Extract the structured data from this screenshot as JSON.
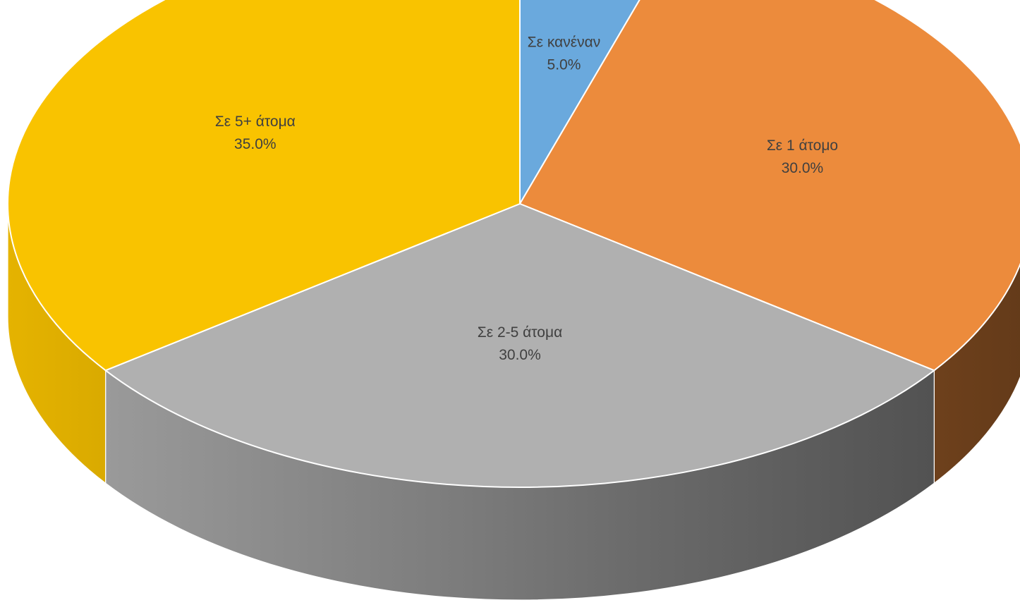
{
  "chart_data": {
    "type": "pie",
    "style": "3d",
    "title": "",
    "categories": [
      "Σε κανέναν",
      "Σε 1 άτομο",
      "Σε 2-5 άτομα",
      "Σε 5+ άτομα"
    ],
    "values": [
      5.0,
      30.0,
      30.0,
      35.0
    ],
    "value_labels": [
      "5.0%",
      "30.0%",
      "30.0%",
      "35.0%"
    ],
    "colors": [
      "#6AA9DD",
      "#EC8B3C",
      "#B0B0B0",
      "#F9C300"
    ],
    "start_angle_deg": 90,
    "direction": "clockwise",
    "legend": "none",
    "labels_shown": "category-and-percent-inside"
  }
}
